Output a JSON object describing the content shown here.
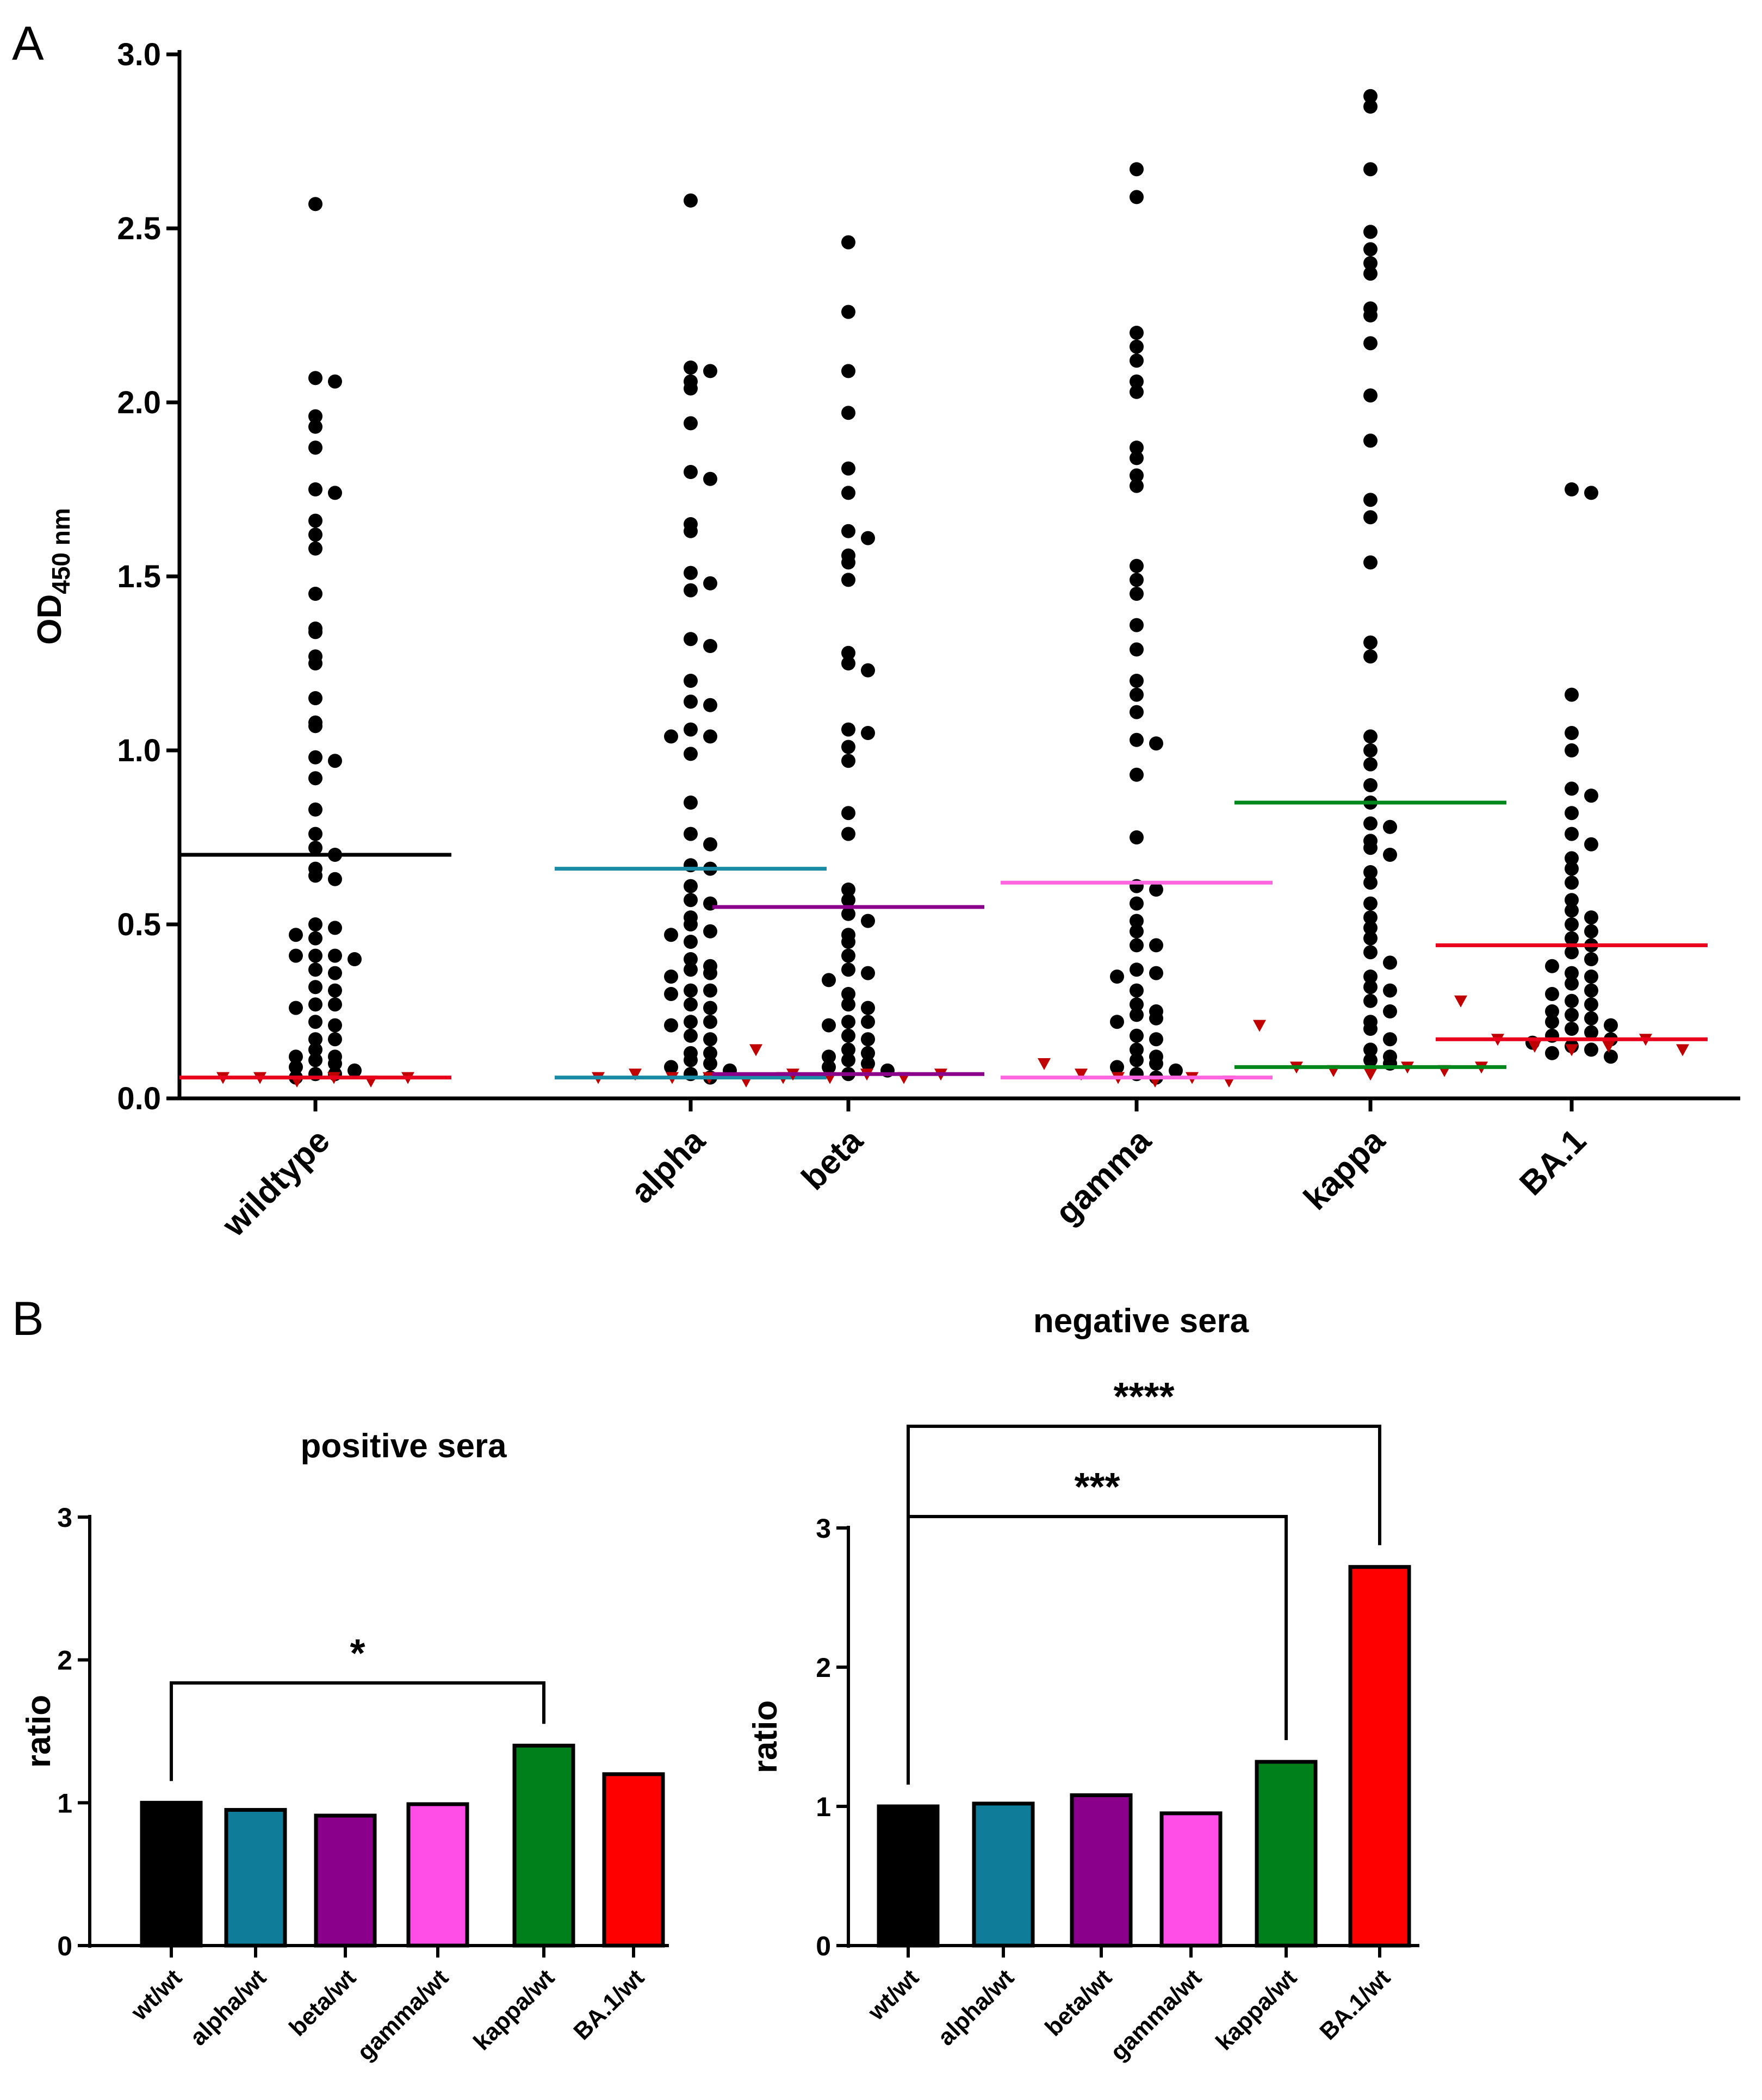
{
  "panel_labels": [
    "A",
    "B"
  ],
  "chart_data": [
    {
      "type": "scatter",
      "subtype": "dot-plot with cutoff lines",
      "panel": "A",
      "ylabel": "OD",
      "ylabel_sub": "450 nm",
      "ylim": [
        0,
        3.0
      ],
      "yticks": [
        "0.0",
        "0.5",
        "1.0",
        "1.5",
        "2.0",
        "2.5",
        "3.0"
      ],
      "categories": [
        "wildtype",
        "alpha",
        "beta",
        "gamma",
        "kappa",
        "BA.1"
      ],
      "groups": [
        {
          "name": "wildtype",
          "cutoff_high": 0.7,
          "cutoff_high_color": "#000000",
          "cutoff_low": 0.06,
          "cutoff_low_color": "#e8001c",
          "points": [
            2.57,
            2.07,
            2.06,
            1.96,
            1.93,
            1.87,
            1.75,
            1.74,
            1.66,
            1.62,
            1.58,
            1.45,
            1.35,
            1.34,
            1.27,
            1.25,
            1.15,
            1.08,
            1.07,
            0.98,
            0.97,
            0.92,
            0.83,
            0.76,
            0.72,
            0.7,
            0.66,
            0.64,
            0.63,
            0.5,
            0.49,
            0.47,
            0.46,
            0.41,
            0.41,
            0.41,
            0.4,
            0.37,
            0.36,
            0.32,
            0.31,
            0.27,
            0.27,
            0.26,
            0.22,
            0.21,
            0.17,
            0.17,
            0.14,
            0.12,
            0.12,
            0.11,
            0.1,
            0.09,
            0.08,
            0.07,
            0.07,
            0.06
          ],
          "negatives": [
            0.06,
            0.06,
            0.05,
            0.06,
            0.05,
            0.06
          ]
        },
        {
          "name": "alpha",
          "cutoff_high": 0.66,
          "cutoff_high_color": "#1b8aa5",
          "cutoff_low": 0.06,
          "cutoff_low_color": "#1b8aa5",
          "points": [
            2.58,
            2.1,
            2.09,
            2.06,
            2.04,
            1.94,
            1.8,
            1.78,
            1.65,
            1.63,
            1.51,
            1.48,
            1.46,
            1.32,
            1.3,
            1.2,
            1.14,
            1.13,
            1.06,
            1.04,
            1.04,
            0.99,
            0.85,
            0.76,
            0.73,
            0.67,
            0.66,
            0.61,
            0.57,
            0.56,
            0.52,
            0.5,
            0.48,
            0.47,
            0.45,
            0.4,
            0.38,
            0.37,
            0.36,
            0.35,
            0.31,
            0.31,
            0.3,
            0.27,
            0.26,
            0.22,
            0.22,
            0.21,
            0.18,
            0.17,
            0.13,
            0.13,
            0.11,
            0.1,
            0.09,
            0.08,
            0.07,
            0.06
          ],
          "negatives": [
            0.06,
            0.07,
            0.06,
            0.06,
            0.05,
            0.06
          ]
        },
        {
          "name": "beta",
          "cutoff_high": 0.55,
          "cutoff_high_color": "#8b008b",
          "cutoff_low": 0.07,
          "cutoff_low_color": "#8b008b",
          "points": [
            2.46,
            2.26,
            2.09,
            1.97,
            1.81,
            1.74,
            1.63,
            1.61,
            1.56,
            1.54,
            1.49,
            1.28,
            1.25,
            1.23,
            1.06,
            1.05,
            1.01,
            0.97,
            0.82,
            0.76,
            0.6,
            0.57,
            0.53,
            0.51,
            0.47,
            0.45,
            0.41,
            0.37,
            0.36,
            0.34,
            0.3,
            0.27,
            0.26,
            0.22,
            0.22,
            0.21,
            0.18,
            0.17,
            0.14,
            0.13,
            0.12,
            0.11,
            0.1,
            0.09,
            0.08,
            0.07
          ],
          "negatives": [
            0.14,
            0.07,
            0.06,
            0.07,
            0.06,
            0.07
          ]
        },
        {
          "name": "gamma",
          "cutoff_high": 0.62,
          "cutoff_high_color": "#ff66e0",
          "cutoff_low": 0.06,
          "cutoff_low_color": "#ff66e0",
          "points": [
            2.67,
            2.59,
            2.2,
            2.16,
            2.12,
            2.06,
            2.03,
            1.87,
            1.84,
            1.79,
            1.76,
            1.53,
            1.49,
            1.45,
            1.36,
            1.29,
            1.2,
            1.16,
            1.11,
            1.03,
            1.02,
            0.93,
            0.75,
            0.61,
            0.6,
            0.56,
            0.51,
            0.48,
            0.44,
            0.44,
            0.37,
            0.36,
            0.35,
            0.31,
            0.27,
            0.25,
            0.24,
            0.23,
            0.22,
            0.18,
            0.17,
            0.14,
            0.12,
            0.11,
            0.1,
            0.09,
            0.08,
            0.07,
            0.06
          ],
          "negatives": [
            0.1,
            0.07,
            0.06,
            0.05,
            0.06,
            0.05
          ]
        },
        {
          "name": "kappa",
          "cutoff_high": 0.85,
          "cutoff_high_color": "#00871b",
          "cutoff_low": 0.09,
          "cutoff_low_color": "#00871b",
          "points": [
            2.88,
            2.85,
            2.67,
            2.49,
            2.44,
            2.4,
            2.37,
            2.27,
            2.25,
            2.17,
            2.02,
            1.89,
            1.72,
            1.67,
            1.54,
            1.31,
            1.27,
            1.04,
            1.0,
            0.96,
            0.9,
            0.85,
            0.79,
            0.78,
            0.74,
            0.72,
            0.7,
            0.65,
            0.62,
            0.56,
            0.52,
            0.49,
            0.46,
            0.42,
            0.39,
            0.35,
            0.32,
            0.31,
            0.28,
            0.25,
            0.22,
            0.2,
            0.17,
            0.14,
            0.12,
            0.11,
            0.1
          ],
          "negatives": [
            0.21,
            0.09,
            0.08,
            0.07,
            0.09,
            0.08,
            0.09
          ]
        },
        {
          "name": "BA.1",
          "cutoff_high": 0.44,
          "cutoff_high_color": "#e8001c",
          "cutoff_low": 0.17,
          "cutoff_low_color": "#e8001c",
          "points": [
            1.75,
            1.74,
            1.16,
            1.05,
            1.0,
            0.89,
            0.87,
            0.82,
            0.76,
            0.73,
            0.69,
            0.66,
            0.62,
            0.57,
            0.54,
            0.52,
            0.5,
            0.48,
            0.46,
            0.44,
            0.42,
            0.4,
            0.38,
            0.36,
            0.35,
            0.33,
            0.31,
            0.3,
            0.28,
            0.27,
            0.25,
            0.24,
            0.23,
            0.22,
            0.21,
            0.2,
            0.19,
            0.18,
            0.17,
            0.16,
            0.15,
            0.14,
            0.13,
            0.12
          ],
          "negatives": [
            0.28,
            0.17,
            0.15,
            0.14,
            0.15,
            0.17,
            0.14
          ]
        }
      ]
    },
    {
      "type": "bar",
      "panel": "B",
      "title": "positive sera",
      "ylabel": "ratio",
      "ylim": [
        0,
        3
      ],
      "yticks": [
        "0",
        "1",
        "2",
        "3"
      ],
      "categories": [
        "wt/wt",
        "alpha/wt",
        "beta/wt",
        "gamma/wt",
        "kappa/wt",
        "BA.1/wt"
      ],
      "values": [
        1.0,
        0.95,
        0.91,
        0.99,
        1.4,
        1.2
      ],
      "colors": [
        "#000000",
        "#0f7d99",
        "#8b008b",
        "#ff4de8",
        "#00801a",
        "#ff0000"
      ],
      "significance": [
        {
          "from": "wt/wt",
          "to": "kappa/wt",
          "label": "*"
        }
      ]
    },
    {
      "type": "bar",
      "panel": "B",
      "title": "negative sera",
      "ylabel": "ratio",
      "ylim": [
        0,
        3
      ],
      "yticks": [
        "0",
        "1",
        "2",
        "3"
      ],
      "categories": [
        "wt/wt",
        "alpha/wt",
        "beta/wt",
        "gamma/wt",
        "kappa/wt",
        "BA.1/wt"
      ],
      "values": [
        1.0,
        1.02,
        1.08,
        0.95,
        1.32,
        2.72
      ],
      "colors": [
        "#000000",
        "#0f7d99",
        "#8b008b",
        "#ff4de8",
        "#00801a",
        "#ff0000"
      ],
      "significance": [
        {
          "from": "wt/wt",
          "to": "kappa/wt",
          "label": "***"
        },
        {
          "from": "wt/wt",
          "to": "BA.1/wt",
          "label": "****"
        }
      ]
    }
  ]
}
